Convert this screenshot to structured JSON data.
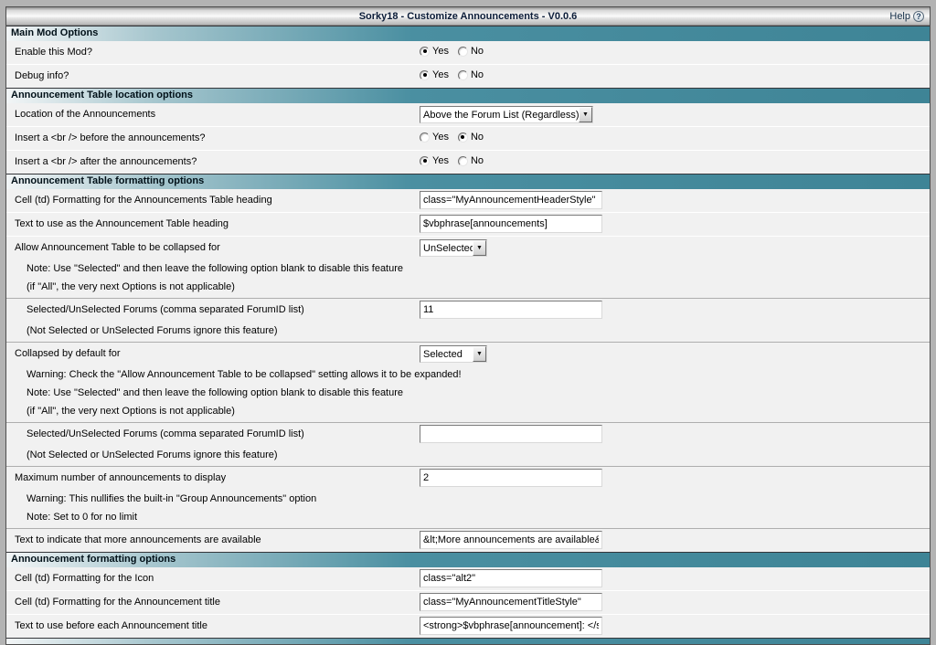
{
  "window": {
    "title": "Sorky18 - Customize Announcements - V0.0.6",
    "help_label": "Help",
    "help_icon": "?"
  },
  "colors": {
    "accent_teal": "#4a8fa1",
    "accent_teal_dark": "#3e8496",
    "row_background": "#f1f1f1",
    "frame_background": "#b3b3b3"
  },
  "sections": [
    {
      "header": "Main Mod Options",
      "rows": [
        {
          "label": "Enable this Mod?",
          "control": {
            "type": "radio",
            "options": [
              "Yes",
              "No"
            ],
            "selected": "Yes"
          }
        },
        {
          "label": "Debug info?",
          "control": {
            "type": "radio",
            "options": [
              "Yes",
              "No"
            ],
            "selected": "Yes"
          }
        }
      ]
    },
    {
      "header": "Announcement Table location options",
      "rows": [
        {
          "label": "Location of the Announcements",
          "control": {
            "type": "select",
            "value": "Above the Forum List (Regardless)",
            "size": "wide"
          }
        },
        {
          "label": "Insert a <br /> before the announcements?",
          "control": {
            "type": "radio",
            "options": [
              "Yes",
              "No"
            ],
            "selected": "No"
          }
        },
        {
          "label": "Insert a <br /> after the announcements?",
          "control": {
            "type": "radio",
            "options": [
              "Yes",
              "No"
            ],
            "selected": "Yes"
          }
        }
      ]
    },
    {
      "header": "Announcement Table formatting options",
      "rows": [
        {
          "label": "Cell (td) Formatting for the Announcements Table heading",
          "control": {
            "type": "text",
            "value": "class=\"MyAnnouncementHeaderStyle\""
          }
        },
        {
          "label": "Text to use as the Announcement Table heading",
          "control": {
            "type": "text",
            "value": "$vbphrase[announcements]"
          }
        },
        {
          "label": "Allow Announcement Table to be collapsed for",
          "control": {
            "type": "select",
            "value": "UnSelected",
            "size": "small"
          },
          "notes": [
            "Note: Use \"Selected\" and then leave the following option blank to disable this feature",
            "(if \"All\", the very next Options is not applicable)"
          ]
        },
        {
          "label": "Selected/UnSelected Forums (comma separated ForumID list)",
          "indent": true,
          "sep": "strong",
          "control": {
            "type": "text",
            "value": "11"
          },
          "notes": [
            "(Not Selected or UnSelected Forums ignore this feature)"
          ]
        },
        {
          "label": "Collapsed by default for",
          "sep": "strong",
          "control": {
            "type": "select",
            "value": "Selected",
            "size": "small"
          },
          "notes": [
            "Warning: Check the \"Allow Announcement Table to be collapsed\" setting allows it to be expanded!",
            "Note: Use \"Selected\" and then leave the following option blank to disable this feature",
            "(if \"All\", the very next Options is not applicable)"
          ]
        },
        {
          "label": "Selected/UnSelected Forums (comma separated ForumID list)",
          "indent": true,
          "sep": "strong",
          "control": {
            "type": "text",
            "value": ""
          },
          "notes": [
            "(Not Selected or UnSelected Forums ignore this feature)"
          ]
        },
        {
          "label": "Maximum number of announcements to display",
          "sep": "strong",
          "control": {
            "type": "text",
            "value": "2"
          },
          "notes": [
            "Warning: This nullifies the built-in \"Group Announcements\" option",
            "Note: Set to 0 for no limit"
          ]
        },
        {
          "label": "Text to indicate that more announcements are available",
          "sep": "strong",
          "control": {
            "type": "text",
            "value": "&lt;More announcements are available&gt;"
          }
        }
      ]
    },
    {
      "header": "Announcement formatting options",
      "rows": [
        {
          "label": "Cell (td) Formatting for the Icon",
          "control": {
            "type": "text",
            "value": "class=\"alt2\""
          }
        },
        {
          "label": "Cell (td) Formatting for the Announcement title",
          "control": {
            "type": "text",
            "value": "class=\"MyAnnouncementTitleStyle\""
          }
        },
        {
          "label": "Text to use before each Announcement title",
          "control": {
            "type": "text",
            "value": "<strong>$vbphrase[announcement]: </stro"
          }
        }
      ]
    }
  ]
}
